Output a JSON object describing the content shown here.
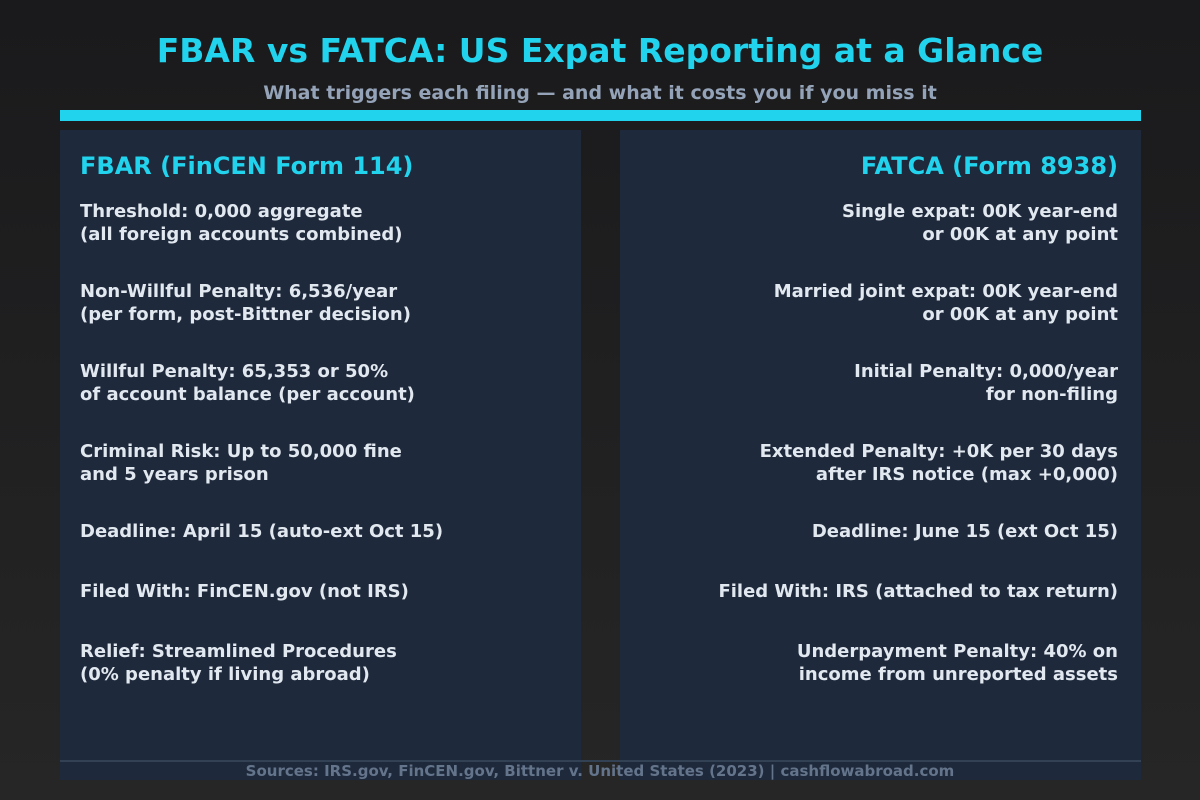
{
  "header": {
    "title": "FBAR vs FATCA: US Expat Reporting at a Glance",
    "subtitle": "What triggers each filing — and what it costs you if you miss it"
  },
  "fbar": {
    "heading": "FBAR (FinCEN Form 114)",
    "items": [
      {
        "line1": "Threshold: 0,000 aggregate",
        "line2": "(all foreign accounts combined)"
      },
      {
        "line1": "Non-Willful Penalty: 6,536/year",
        "line2": "(per form, post-Bittner decision)"
      },
      {
        "line1": "Willful Penalty: 65,353 or 50%",
        "line2": "of account balance (per account)"
      },
      {
        "line1": "Criminal Risk: Up to 50,000 fine",
        "line2": "and 5 years prison"
      },
      {
        "line1": "Deadline: April 15 (auto-ext Oct 15)",
        "line2": ""
      },
      {
        "line1": "Filed With: FinCEN.gov (not IRS)",
        "line2": ""
      },
      {
        "line1": "Relief: Streamlined Procedures",
        "line2": "(0% penalty if living abroad)"
      }
    ]
  },
  "fatca": {
    "heading": "FATCA (Form 8938)",
    "items": [
      {
        "line1": "Single expat: 00K year-end",
        "line2": "or 00K at any point"
      },
      {
        "line1": "Married joint expat: 00K year-end",
        "line2": "or 00K at any point"
      },
      {
        "line1": "Initial Penalty: 0,000/year",
        "line2": "for non-filing"
      },
      {
        "line1": "Extended Penalty: +0K per 30 days",
        "line2": "after IRS notice (max +0,000)"
      },
      {
        "line1": "Deadline: June 15 (ext Oct 15)",
        "line2": ""
      },
      {
        "line1": "Filed With: IRS (attached to tax return)",
        "line2": ""
      },
      {
        "line1": "Underpayment Penalty: 40% on",
        "line2": "income from unreported assets"
      }
    ]
  },
  "footer": {
    "sources": "Sources: IRS.gov, FinCEN.gov, Bittner v. United States (2023) | cashflowabroad.com"
  },
  "colors": {
    "accent": "#22d3ee",
    "panel": "#1e293b",
    "text": "#e2e8f0",
    "muted": "#94a3b8"
  }
}
